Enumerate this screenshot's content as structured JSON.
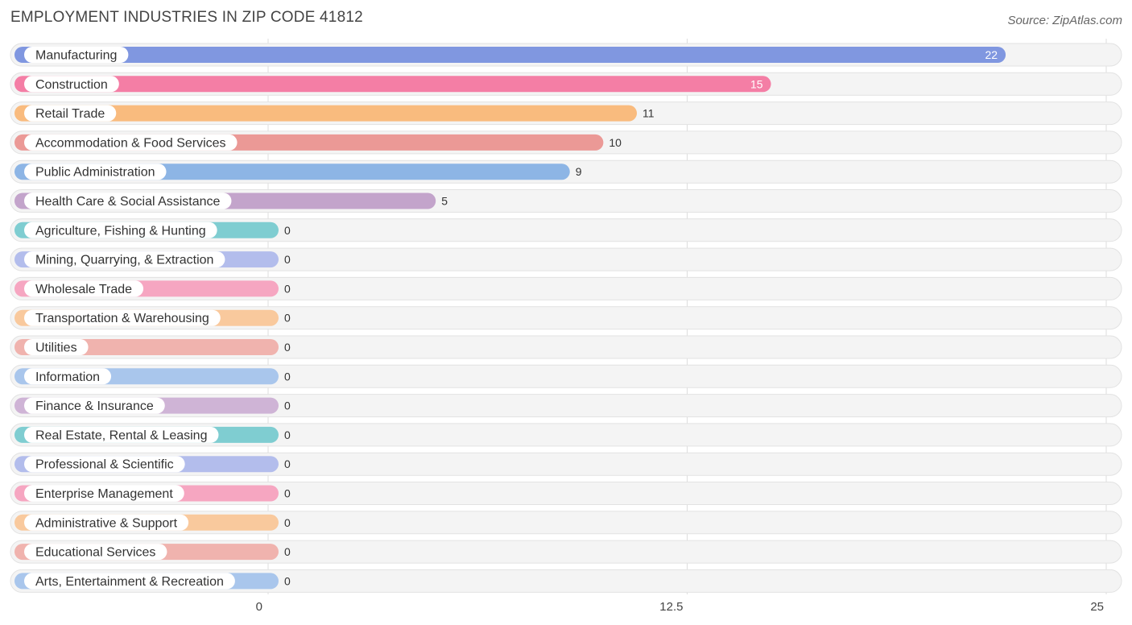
{
  "header": {
    "title": "EMPLOYMENT INDUSTRIES IN ZIP CODE 41812",
    "source": "Source: ZipAtlas.com"
  },
  "chart_data": {
    "type": "bar",
    "orientation": "horizontal",
    "title": "EMPLOYMENT INDUSTRIES IN ZIP CODE 41812",
    "xlim": [
      0,
      25
    ],
    "x_ticks": [
      "0",
      "12.5",
      "25"
    ],
    "grid": true,
    "categories": [
      "Manufacturing",
      "Construction",
      "Retail Trade",
      "Accommodation & Food Services",
      "Public Administration",
      "Health Care & Social Assistance",
      "Agriculture, Fishing & Hunting",
      "Mining, Quarrying, & Extraction",
      "Wholesale Trade",
      "Transportation & Warehousing",
      "Utilities",
      "Information",
      "Finance & Insurance",
      "Real Estate, Rental & Leasing",
      "Professional & Scientific",
      "Enterprise Management",
      "Administrative & Support",
      "Educational Services",
      "Arts, Entertainment & Recreation"
    ],
    "values": [
      22,
      15,
      11,
      10,
      9,
      5,
      0,
      0,
      0,
      0,
      0,
      0,
      0,
      0,
      0,
      0,
      0,
      0,
      0
    ],
    "colors": [
      "#8097e0",
      "#f47ea5",
      "#f9bb7e",
      "#eb9996",
      "#8db5e5",
      "#c3a4cb",
      "#7fcdd1",
      "#b3bdec",
      "#f6a6c1",
      "#f9c99d",
      "#f0b3ae",
      "#a9c6ec",
      "#cfb4d6",
      "#7fcdd1",
      "#b3bdec",
      "#f6a6c1",
      "#f9c99d",
      "#f0b3ae",
      "#a9c6ec"
    ]
  }
}
